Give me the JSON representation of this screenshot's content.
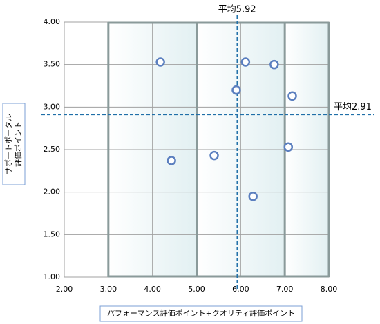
{
  "chart_data": {
    "type": "scatter",
    "xlabel": "パフォーマンス評価ポイント+クオリティ評価ポイント",
    "ylabel": [
      "サポートポータル",
      "評価ポイント"
    ],
    "x": [
      4.18,
      4.43,
      5.4,
      5.9,
      6.11,
      6.28,
      6.76,
      7.08,
      7.17
    ],
    "y": [
      3.53,
      2.37,
      2.43,
      3.2,
      3.53,
      1.95,
      3.5,
      2.53,
      3.13
    ],
    "color": "#5b7fbf",
    "xlim": [
      2,
      8
    ],
    "ylim": [
      1,
      4
    ],
    "xticks": [
      {
        "value": 2,
        "label": "2.00"
      },
      {
        "value": 3,
        "label": "3.00"
      },
      {
        "value": 4,
        "label": "4.00"
      },
      {
        "value": 5,
        "label": "5.00"
      },
      {
        "value": 6,
        "label": "6.00"
      },
      {
        "value": 7,
        "label": "7.00"
      },
      {
        "value": 8,
        "label": "8.00"
      }
    ],
    "yticks": [
      {
        "value": 1,
        "label": "1.00"
      },
      {
        "value": 1.5,
        "label": "1.50"
      },
      {
        "value": 2,
        "label": "2.00"
      },
      {
        "value": 2.5,
        "label": "2.50"
      },
      {
        "value": 3,
        "label": "3.00"
      },
      {
        "value": 3.5,
        "label": "3.50"
      },
      {
        "value": 4,
        "label": "4.00"
      }
    ],
    "zone_edges": [
      3,
      5,
      7,
      8
    ],
    "x_mean": {
      "value": 5.92,
      "label": "平均5.92"
    },
    "y_mean": {
      "value": 2.91,
      "label": "平均2.91"
    },
    "grid": true
  }
}
